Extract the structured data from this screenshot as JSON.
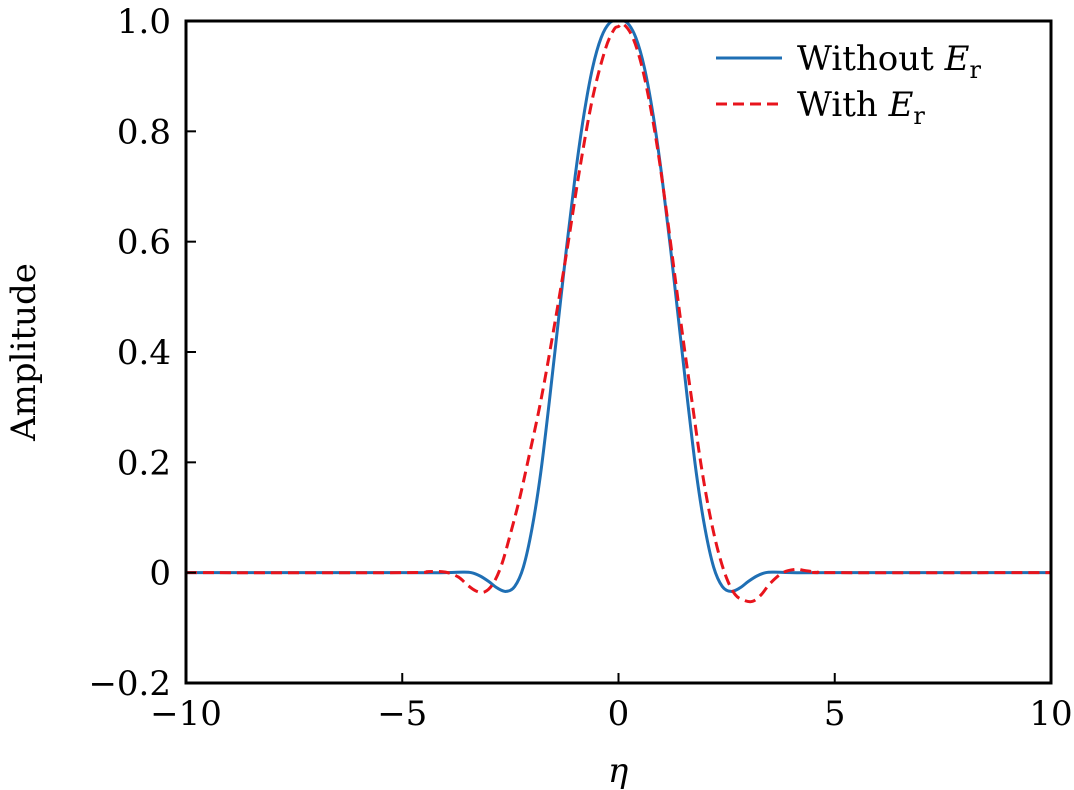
{
  "chart_data": {
    "type": "line",
    "title": "",
    "xlabel": "η",
    "ylabel": "Amplitude",
    "xlim": [
      -10,
      10
    ],
    "ylim": [
      -0.2,
      1.0
    ],
    "x_ticks": [
      -10,
      -5,
      0,
      5,
      10
    ],
    "x_tick_labels": [
      "−10",
      "−5",
      "0",
      "5",
      "10"
    ],
    "y_ticks": [
      -0.2,
      0,
      0.2,
      0.4,
      0.6,
      0.8,
      1.0
    ],
    "y_tick_labels": [
      "−0.2",
      "0",
      "0.2",
      "0.4",
      "0.6",
      "0.8",
      "1.0"
    ],
    "grid": false,
    "legend_position": "top-right",
    "series": [
      {
        "name": "Without E_r",
        "legend_main": "Without ",
        "legend_var": "E",
        "legend_sub": "r",
        "color": "#1f6fb4",
        "style": "solid",
        "x": [
          -10,
          -5,
          -4,
          -3.6,
          -3.4,
          -3.2,
          -3,
          -2.8,
          -2.6,
          -2.4,
          -2.2,
          -2,
          -1.8,
          -1.6,
          -1.4,
          -1.2,
          -1,
          -0.8,
          -0.6,
          -0.4,
          -0.2,
          0,
          0.2,
          0.4,
          0.6,
          0.8,
          1,
          1.2,
          1.4,
          1.6,
          1.8,
          2,
          2.2,
          2.4,
          2.6,
          2.8,
          3,
          3.2,
          3.4,
          3.6,
          4,
          5,
          10
        ],
        "y": [
          0,
          0,
          0,
          0.001,
          0.0,
          -0.006,
          -0.016,
          -0.028,
          -0.034,
          -0.025,
          0.01,
          0.08,
          0.18,
          0.31,
          0.45,
          0.59,
          0.72,
          0.83,
          0.915,
          0.97,
          0.997,
          1.0,
          0.997,
          0.97,
          0.915,
          0.83,
          0.72,
          0.59,
          0.45,
          0.31,
          0.18,
          0.08,
          0.01,
          -0.025,
          -0.034,
          -0.028,
          -0.016,
          -0.006,
          0.0,
          0.001,
          0,
          0,
          0
        ]
      },
      {
        "name": "With E_r",
        "legend_main": "With ",
        "legend_var": "E",
        "legend_sub": "r",
        "color": "#e8141c",
        "style": "dashed",
        "x": [
          -10,
          -5,
          -4.4,
          -4,
          -3.7,
          -3.5,
          -3.3,
          -3.1,
          -2.9,
          -2.7,
          -2.5,
          -2.3,
          -2.1,
          -1.8,
          -1.5,
          -1.2,
          -0.9,
          -0.6,
          -0.3,
          -0.1,
          0,
          0.1,
          0.3,
          0.5,
          0.7,
          0.9,
          1.1,
          1.3,
          1.5,
          1.7,
          1.9,
          2.1,
          2.3,
          2.5,
          2.7,
          2.9,
          3.1,
          3.3,
          3.5,
          3.8,
          4.1,
          4.3,
          4.6,
          5,
          10
        ],
        "y": [
          0,
          0,
          0.002,
          0.001,
          -0.008,
          -0.022,
          -0.033,
          -0.035,
          -0.02,
          0.015,
          0.07,
          0.13,
          0.2,
          0.31,
          0.44,
          0.58,
          0.73,
          0.86,
          0.95,
          0.985,
          0.99,
          0.995,
          0.975,
          0.93,
          0.86,
          0.77,
          0.66,
          0.54,
          0.42,
          0.31,
          0.2,
          0.11,
          0.04,
          -0.01,
          -0.04,
          -0.05,
          -0.052,
          -0.04,
          -0.02,
          0.0,
          0.006,
          0.004,
          0.001,
          0,
          0
        ]
      }
    ]
  }
}
